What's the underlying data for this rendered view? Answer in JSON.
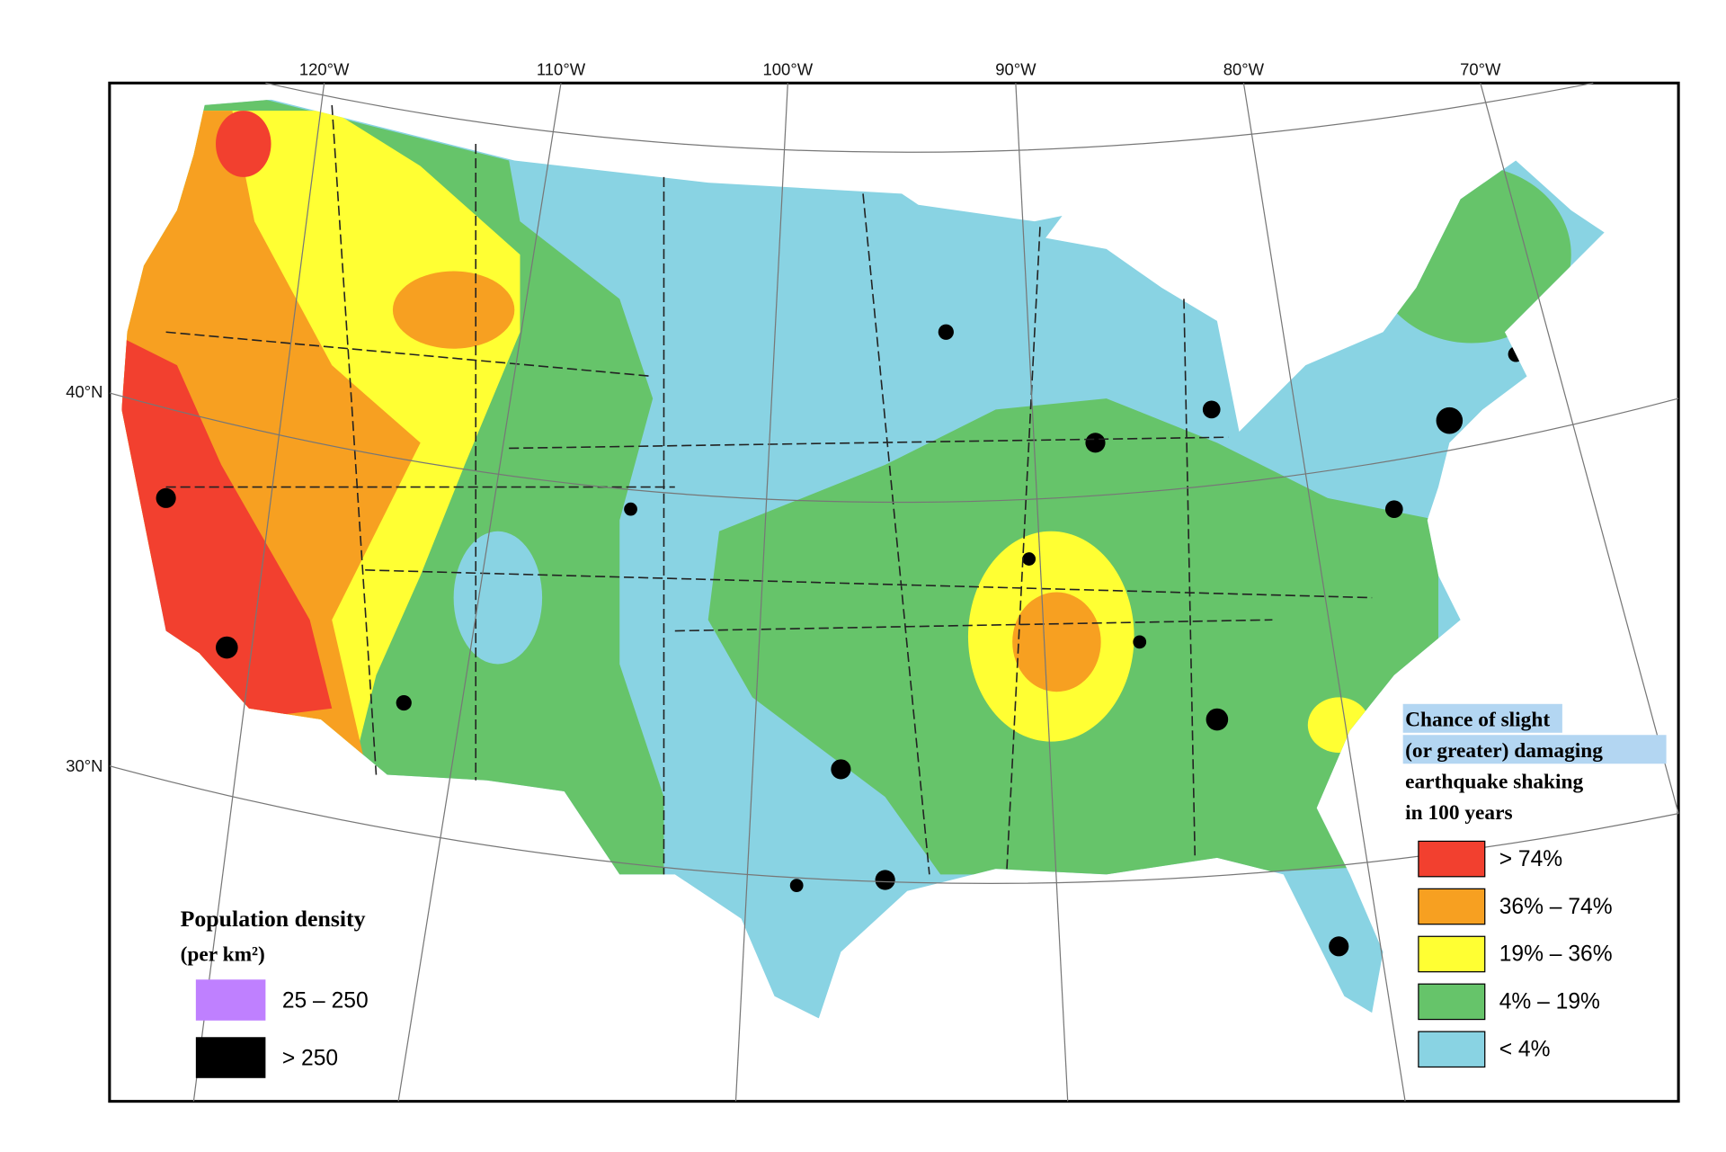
{
  "graticule": {
    "meridians": [
      "120°W",
      "110°W",
      "100°W",
      "90°W",
      "80°W",
      "70°W"
    ],
    "parallels": [
      "40°N",
      "30°N"
    ]
  },
  "population_legend": {
    "title": "Population density",
    "subtitle": "(per km²)",
    "items": [
      {
        "label": "25 – 250",
        "color": "#bf80ff"
      },
      {
        "label": "> 250",
        "color": "#000000"
      }
    ]
  },
  "shaking_legend": {
    "title_lines": [
      "Chance of slight",
      "(or greater) damaging",
      "earthquake shaking",
      "in 100 years"
    ],
    "items": [
      {
        "label": "> 74%",
        "color": "#f2402f"
      },
      {
        "label": "36% – 74%",
        "color": "#f7a021"
      },
      {
        "label": "19% – 36%",
        "color": "#ffff33"
      },
      {
        "label": "4% – 19%",
        "color": "#66c46a"
      },
      {
        "label": "< 4%",
        "color": "#89d3e3"
      }
    ]
  }
}
